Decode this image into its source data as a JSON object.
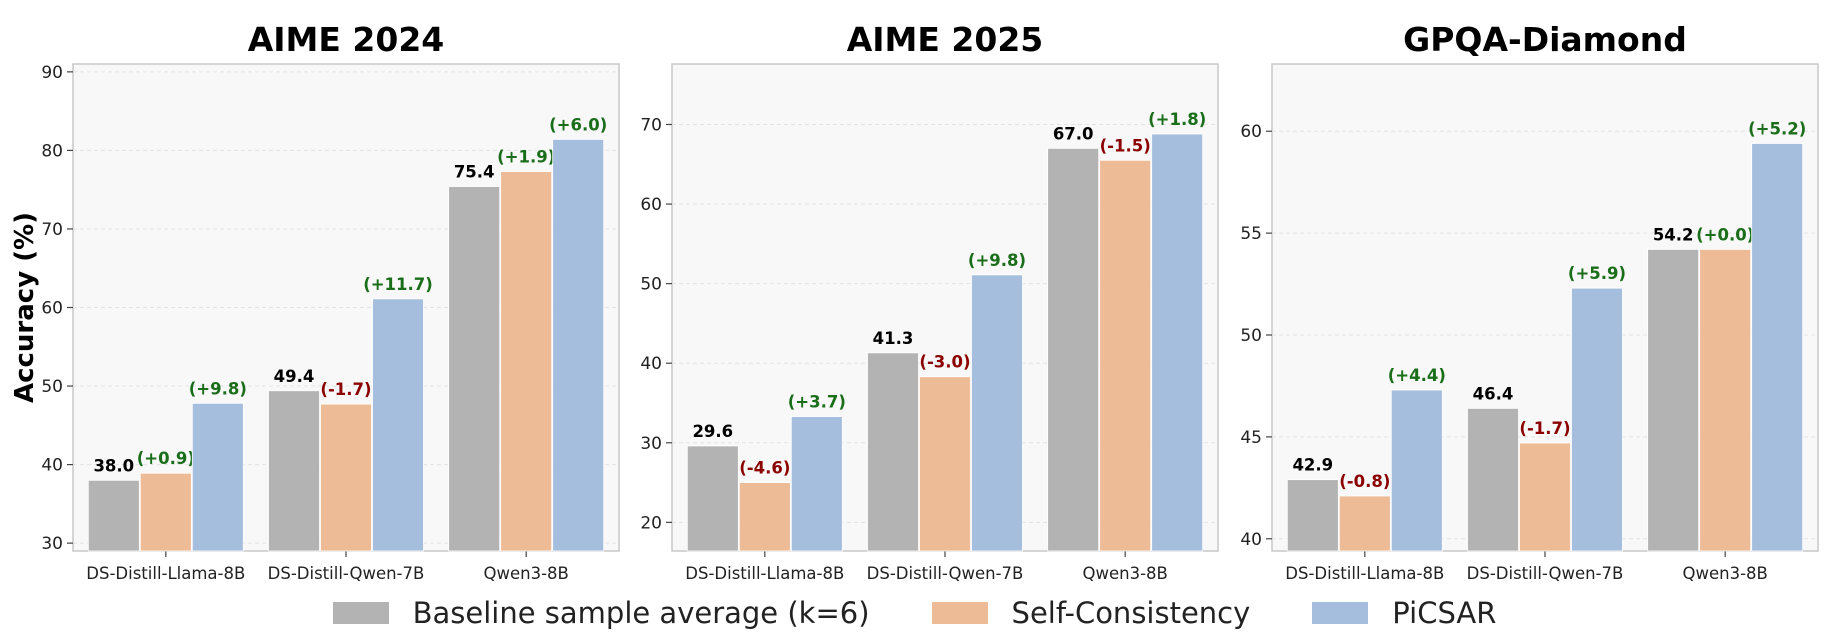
{
  "colors": {
    "baseline": "#b3b3b3",
    "self_consistency": "#eebb97",
    "picsar": "#a6bedd",
    "positive": "#1a6e1a",
    "negative": "#8b0000",
    "plot_bg": "#f8f8f8",
    "frame": "#c8c8c8"
  },
  "legend": {
    "items": [
      {
        "label": "Baseline sample average (k=6)",
        "color": "#b3b3b3"
      },
      {
        "label": "Self-Consistency",
        "color": "#eebb97"
      },
      {
        "label": "PiCSAR",
        "color": "#a6bedd"
      }
    ],
    "placement": "bottom-center"
  },
  "chart_data": [
    {
      "type": "bar",
      "title": "AIME 2024",
      "ylabel": "Accuracy (%)",
      "ylim": [
        29,
        91
      ],
      "yticks": [
        30,
        40,
        50,
        60,
        70,
        80,
        90
      ],
      "grid": true,
      "categories": [
        "DS-Distill-Llama-8B",
        "DS-Distill-Qwen-7B",
        "Qwen3-8B"
      ],
      "series": [
        {
          "name": "Baseline sample average (k=6)",
          "values": [
            38.0,
            49.4,
            75.4
          ]
        },
        {
          "name": "Self-Consistency",
          "values": [
            38.9,
            47.7,
            77.3
          ]
        },
        {
          "name": "PiCSAR",
          "values": [
            47.8,
            61.1,
            81.4
          ]
        }
      ],
      "baseline_labels": [
        "38.0",
        "49.4",
        "75.4"
      ],
      "sc_deltas": [
        "(+0.9)",
        "(-1.7)",
        "(+1.9)"
      ],
      "picsar_deltas": [
        "(+9.8)",
        "(+11.7)",
        "(+6.0)"
      ]
    },
    {
      "type": "bar",
      "title": "AIME 2025",
      "ylabel": "",
      "ylim": [
        16.4,
        77.6
      ],
      "yticks": [
        20,
        30,
        40,
        50,
        60,
        70
      ],
      "grid": true,
      "categories": [
        "DS-Distill-Llama-8B",
        "DS-Distill-Qwen-7B",
        "Qwen3-8B"
      ],
      "series": [
        {
          "name": "Baseline sample average (k=6)",
          "values": [
            29.6,
            41.3,
            67.0
          ]
        },
        {
          "name": "Self-Consistency",
          "values": [
            25.0,
            38.3,
            65.5
          ]
        },
        {
          "name": "PiCSAR",
          "values": [
            33.3,
            51.1,
            68.8
          ]
        }
      ],
      "baseline_labels": [
        "29.6",
        "41.3",
        "67.0"
      ],
      "sc_deltas": [
        "(-4.6)",
        "(-3.0)",
        "(-1.5)"
      ],
      "picsar_deltas": [
        "(+3.7)",
        "(+9.8)",
        "(+1.8)"
      ]
    },
    {
      "type": "bar",
      "title": "GPQA-Diamond",
      "ylabel": "",
      "ylim": [
        39.4,
        63.3
      ],
      "yticks": [
        40,
        45,
        50,
        55,
        60
      ],
      "grid": true,
      "categories": [
        "DS-Distill-Llama-8B",
        "DS-Distill-Qwen-7B",
        "Qwen3-8B"
      ],
      "series": [
        {
          "name": "Baseline sample average (k=6)",
          "values": [
            42.9,
            46.4,
            54.2
          ]
        },
        {
          "name": "Self-Consistency",
          "values": [
            42.1,
            44.7,
            54.2
          ]
        },
        {
          "name": "PiCSAR",
          "values": [
            47.3,
            52.3,
            59.4
          ]
        }
      ],
      "baseline_labels": [
        "42.9",
        "46.4",
        "54.2"
      ],
      "sc_deltas": [
        "(-0.8)",
        "(-1.7)",
        "(+0.0)"
      ],
      "picsar_deltas": [
        "(+4.4)",
        "(+5.9)",
        "(+5.2)"
      ]
    }
  ]
}
